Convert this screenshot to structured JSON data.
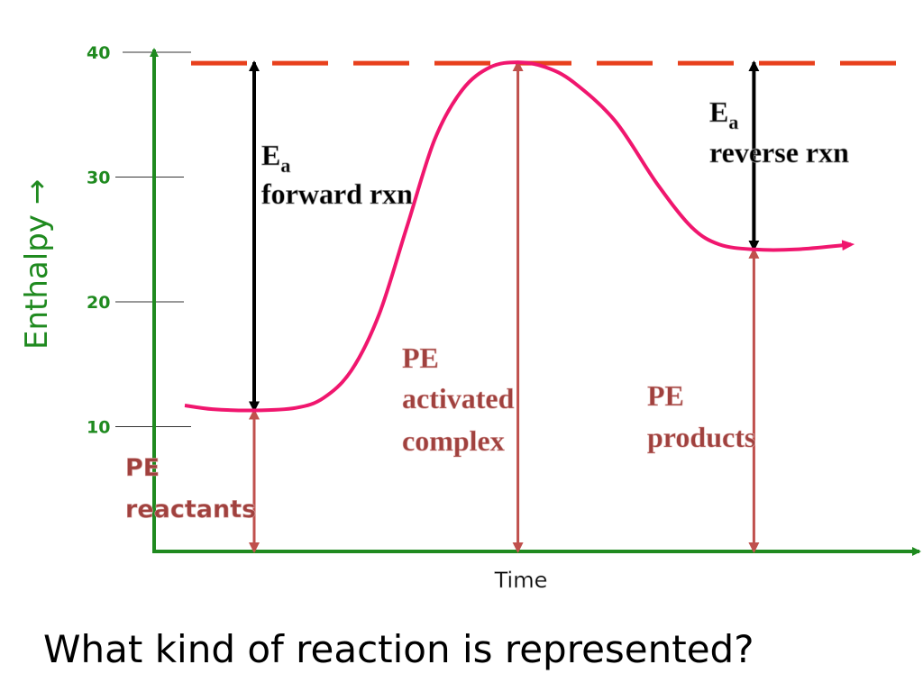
{
  "question": "What kind of reaction is represented?",
  "chart_data": {
    "type": "line",
    "title": "",
    "xlabel": "Time",
    "ylabel": "Enthalpy →",
    "ylim": [
      0,
      41.5
    ],
    "y_ticks": [
      "10",
      "20",
      "30",
      "40"
    ],
    "series": [
      {
        "points": [
          [
            0.0,
            11.7
          ],
          [
            0.04,
            11.4
          ],
          [
            0.1,
            11.3
          ],
          [
            0.16,
            11.5
          ],
          [
            0.2,
            12.3
          ],
          [
            0.24,
            14.5
          ],
          [
            0.28,
            19.0
          ],
          [
            0.32,
            26.0
          ],
          [
            0.36,
            33.0
          ],
          [
            0.4,
            37.0
          ],
          [
            0.44,
            38.8
          ],
          [
            0.48,
            39.2
          ],
          [
            0.52,
            38.8
          ],
          [
            0.56,
            37.6
          ],
          [
            0.62,
            34.5
          ],
          [
            0.68,
            29.5
          ],
          [
            0.73,
            26.0
          ],
          [
            0.77,
            24.6
          ],
          [
            0.82,
            24.2
          ],
          [
            0.88,
            24.2
          ],
          [
            0.96,
            24.6
          ]
        ]
      }
    ],
    "reference_lines": [
      {
        "y": 39.2,
        "style": "dashed",
        "color": "#e8401c"
      }
    ],
    "colors": {
      "axis": "#1f8a1f",
      "curve": "#f0166e",
      "pe_arrow": "#c0504d",
      "ea_arrow": "#000000",
      "pe_text": "#a0413e",
      "ea_text": "#000000"
    },
    "annotations": {
      "ea_forward": {
        "symbol": "E",
        "subscript": "a",
        "line2": "forward rxn"
      },
      "ea_reverse": {
        "symbol": "E",
        "subscript": "a",
        "line2": "reverse rxn"
      },
      "pe_reactants": {
        "line1": "PE",
        "line2": "reactants"
      },
      "pe_activated": {
        "line1": "PE",
        "line2": "activated",
        "line3": "complex"
      },
      "pe_products": {
        "line1": "PE",
        "line2": "products"
      }
    },
    "arrows": [
      {
        "kind": "ea_forward",
        "x": 0.1,
        "y_from": 11.3,
        "y_to": 39.2
      },
      {
        "kind": "ea_reverse",
        "x": 0.82,
        "y_from": 24.2,
        "y_to": 39.2
      },
      {
        "kind": "pe_reactants",
        "x": 0.1,
        "y_from": 0,
        "y_to": 11.3
      },
      {
        "kind": "pe_activated",
        "x": 0.48,
        "y_from": 0,
        "y_to": 39.2
      },
      {
        "kind": "pe_products",
        "x": 0.82,
        "y_from": 0,
        "y_to": 24.2
      }
    ]
  }
}
